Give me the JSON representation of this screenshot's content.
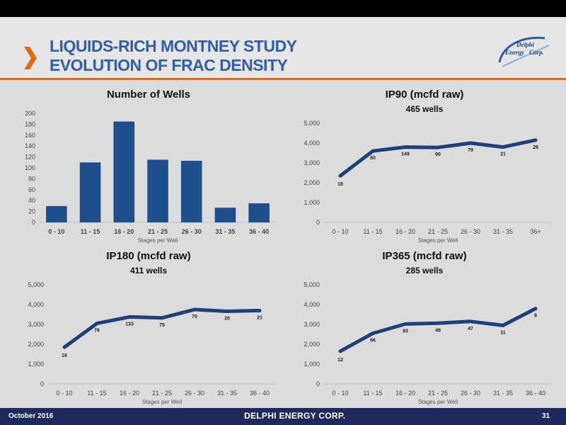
{
  "slide": {
    "title_line1": "LIQUIDS-RICH MONTNEY STUDY",
    "title_line2": "EVOLUTION OF FRAC DENSITY",
    "date": "October 2016",
    "page": "31",
    "footer_company": "DELPHI ENERGY CORP.",
    "logo_text": [
      "Delphi",
      "Energy",
      "Corp."
    ],
    "colors": {
      "title": "#2f5fa6",
      "accent": "#e06b13",
      "bar": "#1f4e8c",
      "line": "#1f3f7a",
      "footer": "#1f2a5c"
    }
  },
  "chart_data": [
    {
      "type": "bar",
      "title": "Number of Wells",
      "xlabel": "Stages per Well",
      "categories": [
        "0 - 10",
        "11 - 15",
        "16 - 20",
        "21 - 25",
        "26 - 30",
        "31 - 35",
        "36 - 40"
      ],
      "values": [
        30,
        110,
        185,
        115,
        113,
        27,
        35
      ],
      "ylim": [
        0,
        200
      ],
      "yticks": [
        "0",
        "20",
        "40",
        "60",
        "80",
        "100",
        "120",
        "140",
        "160",
        "180",
        "200"
      ]
    },
    {
      "type": "line",
      "title": "IP90 (mcfd raw)",
      "subtitle": "465 wells",
      "xlabel": "Stages per Well",
      "categories": [
        "0 - 10",
        "11 - 15",
        "16 - 20",
        "21 - 25",
        "26 - 30",
        "31 - 35",
        "36+"
      ],
      "values": [
        2350,
        3600,
        3800,
        3780,
        4000,
        3800,
        4150
      ],
      "labels": [
        "18",
        "80",
        "149",
        "90",
        "79",
        "21",
        "28"
      ],
      "ylim": [
        0,
        5000
      ],
      "yticks": [
        "0",
        "1,000",
        "2,000",
        "3,000",
        "4,000",
        "5,000"
      ]
    },
    {
      "type": "line",
      "title": "IP180 (mcfd raw)",
      "subtitle": "411 wells",
      "xlabel": "Stages per Well",
      "categories": [
        "0 - 10",
        "11 - 15",
        "16 - 20",
        "21 - 25",
        "26 - 30",
        "31 - 35",
        "36 - 40"
      ],
      "values": [
        1850,
        3050,
        3380,
        3330,
        3750,
        3660,
        3700
      ],
      "labels": [
        "16",
        "76",
        "133",
        "75",
        "70",
        "20",
        "21"
      ],
      "ylim": [
        0,
        5000
      ],
      "yticks": [
        "0",
        "1,000",
        "2,000",
        "3,000",
        "4,000",
        "5,000"
      ]
    },
    {
      "type": "line",
      "title": "IP365 (mcfd raw)",
      "subtitle": "285 wells",
      "xlabel": "Stages per Well",
      "categories": [
        "0 - 10",
        "11 - 15",
        "16 - 20",
        "21 - 25",
        "26 - 30",
        "31 - 35",
        "36 - 40"
      ],
      "values": [
        1650,
        2550,
        3020,
        3060,
        3150,
        2950,
        3800
      ],
      "labels": [
        "12",
        "66",
        "93",
        "48",
        "47",
        "11",
        "8"
      ],
      "ylim": [
        0,
        5000
      ],
      "yticks": [
        "0",
        "1,000",
        "2,000",
        "3,000",
        "4,000",
        "5,000"
      ]
    }
  ]
}
